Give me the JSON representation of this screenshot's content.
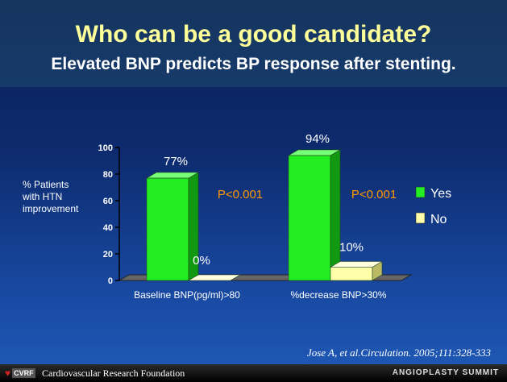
{
  "slide": {
    "title": "Who can be a good candidate?",
    "subtitle": "Elevated BNP predicts BP response after stenting.",
    "citation": "Jose A, et al.Circulation. 2005;111:328-333",
    "footer_left": "Cardiovascular Research Foundation",
    "footer_right": "ANGIOPLASTY SUMMIT",
    "logo_text": "CVRF"
  },
  "chart_data": {
    "type": "bar",
    "categories": [
      "Baseline BNP(pg/ml)>80",
      "%decrease BNP>30%"
    ],
    "series": [
      {
        "name": "Yes",
        "values": [
          77,
          94
        ],
        "labels": [
          "77%",
          "94%"
        ],
        "color": "#22ee22",
        "side_color": "#119911",
        "top_color": "#77ff77"
      },
      {
        "name": "No",
        "values": [
          0,
          10
        ],
        "labels": [
          "0%",
          "10%"
        ],
        "color": "#ffffaa",
        "side_color": "#bbbb66",
        "top_color": "#ffffdd"
      }
    ],
    "ylabel": [
      "% Patients",
      "with HTN",
      "improvement"
    ],
    "ylim": [
      0,
      100
    ],
    "yticks": [
      0,
      20,
      40,
      60,
      80,
      100
    ],
    "annotations": [
      "P<0.001",
      "P<0.001"
    ],
    "annotation_color": "#ff9900",
    "legend_position": "right"
  }
}
